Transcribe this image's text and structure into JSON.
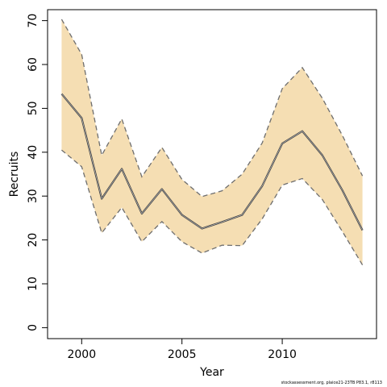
{
  "chart_data": {
    "type": "line",
    "title": "",
    "xlabel": "Year",
    "ylabel": "Recruits",
    "xlim": [
      1998.3,
      2014.7
    ],
    "ylim": [
      -2.5,
      72.5
    ],
    "xticks": [
      2000,
      2005,
      2010
    ],
    "yticks": [
      0,
      10,
      20,
      30,
      40,
      50,
      60,
      70
    ],
    "grid": false,
    "legend": "none",
    "x": [
      1999,
      2000,
      2001,
      2002,
      2003,
      2004,
      2005,
      2006,
      2007,
      2008,
      2009,
      2010,
      2011,
      2012,
      2013,
      2014
    ],
    "series": [
      {
        "role": "estimate",
        "values": [
          53.3,
          47.8,
          29.4,
          36.2,
          26.0,
          31.6,
          25.7,
          22.6,
          24.1,
          25.7,
          32.3,
          42.0,
          44.8,
          39.3,
          31.3,
          22.2
        ]
      },
      {
        "role": "upper",
        "values": [
          70.3,
          62.3,
          39.3,
          47.6,
          34.4,
          41.1,
          33.8,
          29.9,
          31.2,
          35.0,
          42.1,
          54.5,
          59.3,
          52.3,
          43.8,
          34.6
        ]
      },
      {
        "role": "lower",
        "values": [
          40.5,
          36.7,
          21.6,
          27.4,
          19.6,
          24.2,
          19.6,
          17.0,
          18.8,
          18.7,
          24.8,
          32.5,
          34.0,
          29.2,
          21.9,
          14.3
        ]
      }
    ],
    "colors": {
      "band": "#f5deb3",
      "estimate": "#404040",
      "bounds": "#6e6e6e"
    }
  },
  "footer": {
    "text": "stockassessment.org, plaice21-23TB P83.1, r8113"
  }
}
